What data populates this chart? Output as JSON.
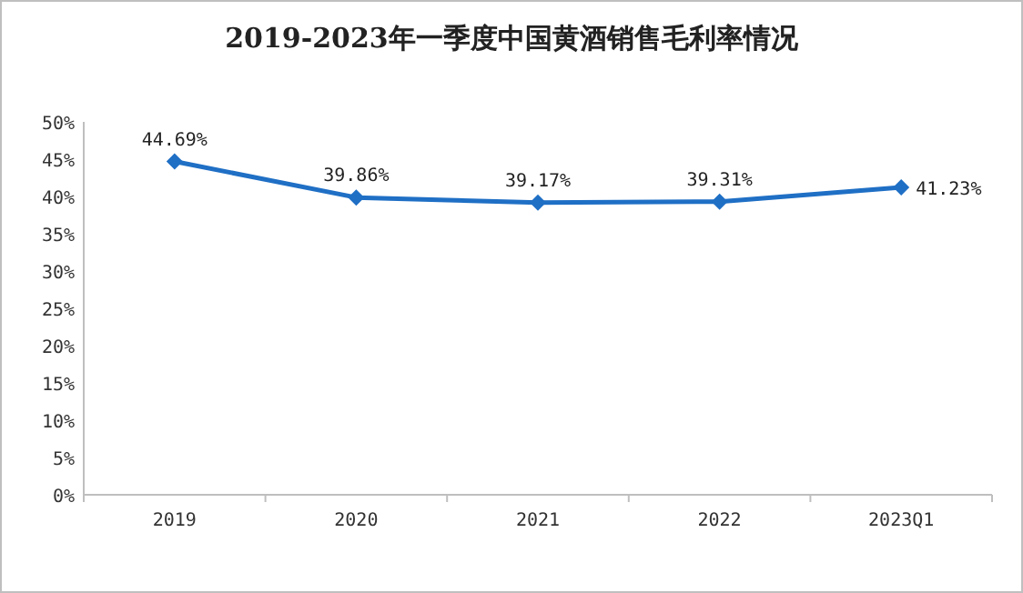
{
  "chart_data": {
    "type": "line",
    "title": "2019-2023年一季度中国黄酒销售毛利率情况",
    "categories": [
      "2019",
      "2020",
      "2021",
      "2022",
      "2023Q1"
    ],
    "series": [
      {
        "color": "#1f6fc5",
        "values": [
          44.69,
          39.86,
          39.17,
          39.31,
          41.23
        ]
      }
    ],
    "value_labels": [
      "44.69%",
      "39.86%",
      "39.17%",
      "39.31%",
      "41.23%"
    ],
    "ylim": [
      0,
      50
    ],
    "yticks": [
      {
        "value": 0,
        "label": "0%"
      },
      {
        "value": 5,
        "label": "5%"
      },
      {
        "value": 10,
        "label": "10%"
      },
      {
        "value": 15,
        "label": "15%"
      },
      {
        "value": 20,
        "label": "20%"
      },
      {
        "value": 25,
        "label": "25%"
      },
      {
        "value": 30,
        "label": "30%"
      },
      {
        "value": 35,
        "label": "35%"
      },
      {
        "value": 40,
        "label": "40%"
      },
      {
        "value": 45,
        "label": "45%"
      },
      {
        "value": 50,
        "label": "50%"
      }
    ],
    "marker": "diamond",
    "line_style": "solid"
  }
}
